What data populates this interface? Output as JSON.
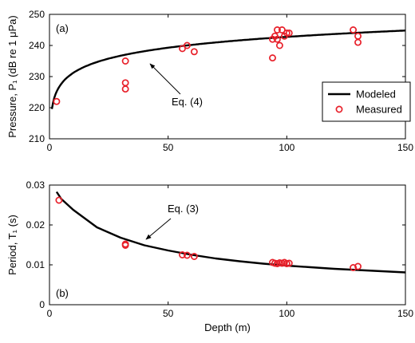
{
  "chart_data": [
    {
      "type": "scatter",
      "panel_label": "(a)",
      "ylabel": "Pressure, P₁ (dB re 1 μPa)",
      "xlim": [
        0,
        150
      ],
      "ylim": [
        210,
        250
      ],
      "xticks": [
        0,
        50,
        100,
        150
      ],
      "yticks": [
        210,
        220,
        230,
        240,
        250
      ],
      "grid": false,
      "legend": {
        "placement": "right",
        "entries": [
          {
            "label": "Modeled",
            "style": "line",
            "color": "#000000"
          },
          {
            "label": "Measured",
            "style": "circle",
            "color": "#e8202a"
          }
        ]
      },
      "annotation": {
        "text": "Eq. (4)",
        "points_to_x": 42
      },
      "series": [
        {
          "name": "Modeled",
          "kind": "line",
          "model": "log10",
          "x": [
            1,
            3,
            5,
            10,
            20,
            30,
            40,
            50,
            60,
            70,
            80,
            90,
            100,
            110,
            120,
            130,
            140,
            150
          ],
          "y": [
            219.6,
            223.5,
            225.5,
            229.5,
            234.0,
            236.0,
            237.8,
            239.0,
            240.0,
            240.9,
            241.7,
            242.3,
            242.9,
            243.4,
            243.8,
            244.2,
            244.5,
            244.8
          ]
        },
        {
          "name": "Measured",
          "kind": "scatter",
          "points": [
            [
              3,
              222
            ],
            [
              32,
              235
            ],
            [
              32,
              228
            ],
            [
              32,
              226
            ],
            [
              56,
              239
            ],
            [
              58,
              240
            ],
            [
              61,
              238
            ],
            [
              94,
              236
            ],
            [
              94,
              242
            ],
            [
              95,
              243
            ],
            [
              96,
              245
            ],
            [
              96,
              242
            ],
            [
              97,
              240
            ],
            [
              98,
              245
            ],
            [
              99,
              243
            ],
            [
              100,
              244
            ],
            [
              101,
              244
            ],
            [
              128,
              245
            ],
            [
              130,
              243
            ],
            [
              130,
              241
            ]
          ]
        }
      ]
    },
    {
      "type": "scatter",
      "panel_label": "(b)",
      "xlabel": "Depth (m)",
      "ylabel": "Period, T₁ (s)",
      "xlim": [
        0,
        150
      ],
      "ylim": [
        0,
        0.03
      ],
      "xticks": [
        0,
        50,
        100,
        150
      ],
      "xtick_labels": [
        "0",
        "50",
        "100",
        "150"
      ],
      "yticks": [
        0,
        0.01,
        0.02,
        0.03
      ],
      "ytick_labels": [
        "0",
        "0.01",
        "0.02",
        "0.03"
      ],
      "grid": false,
      "annotation": {
        "text": "Eq. (3)",
        "points_to_x": 41
      },
      "series": [
        {
          "name": "Modeled",
          "kind": "line",
          "x": [
            3,
            5,
            10,
            20,
            30,
            40,
            50,
            60,
            70,
            80,
            90,
            100,
            110,
            120,
            130,
            140,
            150
          ],
          "y": [
            0.0283,
            0.0265,
            0.0238,
            0.0194,
            0.0168,
            0.0149,
            0.0136,
            0.0125,
            0.0116,
            0.0109,
            0.0103,
            0.0098,
            0.0094,
            0.009,
            0.0087,
            0.0084,
            0.0081
          ]
        },
        {
          "name": "Measured",
          "kind": "scatter",
          "points": [
            [
              4,
              0.0262
            ],
            [
              32,
              0.0152
            ],
            [
              32,
              0.0149
            ],
            [
              56,
              0.0125
            ],
            [
              58,
              0.0124
            ],
            [
              61,
              0.0121
            ],
            [
              94,
              0.0106
            ],
            [
              95,
              0.0104
            ],
            [
              96,
              0.0103
            ],
            [
              97,
              0.0105
            ],
            [
              98,
              0.0104
            ],
            [
              99,
              0.0106
            ],
            [
              100,
              0.0103
            ],
            [
              101,
              0.0104
            ],
            [
              128,
              0.0093
            ],
            [
              130,
              0.0096
            ]
          ]
        }
      ]
    }
  ]
}
